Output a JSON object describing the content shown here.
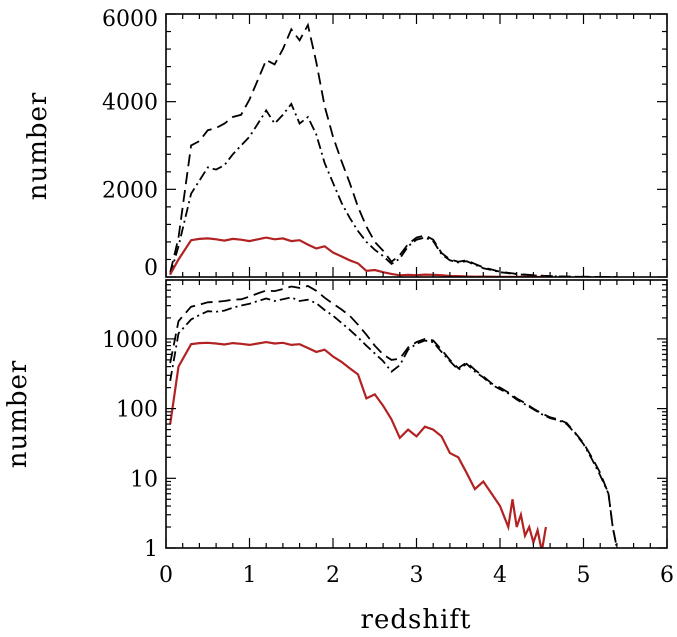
{
  "colors": {
    "red_series": "#b22222",
    "black_series": "#000000",
    "background": "#ffffff"
  },
  "chart_data": [
    {
      "type": "line",
      "panel": "top",
      "title": "",
      "xlabel": "",
      "ylabel": "number",
      "xlim": [
        0,
        6
      ],
      "ylim": [
        0,
        6000
      ],
      "yscale": "linear",
      "yticks": [
        0,
        2000,
        4000,
        6000
      ],
      "ytick_labels": [
        "0",
        "2000",
        "4000",
        "6000"
      ],
      "grid": false,
      "series": [
        {
          "style": "dashed",
          "color": "#000000",
          "x": [
            0.05,
            0.15,
            0.3,
            0.4,
            0.5,
            0.6,
            0.7,
            0.8,
            0.9,
            1.0,
            1.1,
            1.2,
            1.3,
            1.4,
            1.5,
            1.6,
            1.7,
            1.8,
            1.9,
            2.0,
            2.1,
            2.2,
            2.3,
            2.4,
            2.5,
            2.6,
            2.7,
            2.8,
            2.9,
            3.0,
            3.1,
            3.2,
            3.3,
            3.4,
            3.5,
            3.6,
            3.7,
            3.8,
            3.9,
            4.0,
            4.2,
            4.4,
            4.6,
            4.8,
            5.0,
            5.2,
            5.4
          ],
          "y": [
            100,
            900,
            3000,
            3100,
            3350,
            3400,
            3500,
            3650,
            3700,
            4050,
            4500,
            4950,
            4850,
            5200,
            5650,
            5400,
            5750,
            4900,
            3900,
            3200,
            2650,
            2150,
            1600,
            1150,
            800,
            600,
            350,
            500,
            750,
            900,
            950,
            850,
            550,
            400,
            350,
            380,
            300,
            220,
            170,
            120,
            70,
            40,
            20,
            10,
            5,
            2,
            0
          ]
        },
        {
          "style": "dash-dot",
          "color": "#000000",
          "x": [
            0.05,
            0.15,
            0.3,
            0.4,
            0.5,
            0.6,
            0.7,
            0.8,
            0.9,
            1.0,
            1.1,
            1.2,
            1.3,
            1.4,
            1.5,
            1.6,
            1.7,
            1.8,
            1.9,
            2.0,
            2.1,
            2.2,
            2.3,
            2.4,
            2.5,
            2.6,
            2.7,
            2.8,
            2.9,
            3.0,
            3.1,
            3.2,
            3.3,
            3.4,
            3.5,
            3.6,
            3.7,
            3.8,
            3.9,
            4.0,
            4.2,
            4.4,
            4.6,
            4.8,
            5.0,
            5.2,
            5.4
          ],
          "y": [
            50,
            700,
            1900,
            2200,
            2500,
            2450,
            2550,
            2800,
            3000,
            3200,
            3500,
            3800,
            3500,
            3700,
            3950,
            3500,
            3650,
            3250,
            2600,
            2150,
            1700,
            1350,
            1050,
            800,
            620,
            480,
            300,
            420,
            700,
            850,
            900,
            820,
            520,
            380,
            330,
            360,
            280,
            200,
            160,
            110,
            65,
            35,
            18,
            8,
            4,
            2,
            0
          ]
        },
        {
          "style": "solid",
          "color": "#b22222",
          "x": [
            0.05,
            0.15,
            0.3,
            0.4,
            0.5,
            0.6,
            0.7,
            0.8,
            0.9,
            1.0,
            1.1,
            1.2,
            1.3,
            1.4,
            1.5,
            1.6,
            1.7,
            1.8,
            1.9,
            2.0,
            2.1,
            2.2,
            2.3,
            2.4,
            2.5,
            2.6,
            2.7,
            2.8,
            2.9,
            3.0,
            3.1,
            3.2,
            3.3,
            3.4,
            3.5,
            3.6,
            3.7,
            3.8,
            3.9,
            4.0,
            4.1,
            4.2,
            4.3,
            4.4,
            4.5,
            4.55
          ],
          "y": [
            60,
            400,
            840,
            870,
            880,
            860,
            830,
            870,
            850,
            820,
            860,
            900,
            860,
            880,
            820,
            840,
            740,
            650,
            700,
            560,
            470,
            380,
            310,
            140,
            160,
            110,
            70,
            38,
            50,
            40,
            55,
            50,
            40,
            23,
            20,
            12,
            7,
            9,
            6,
            4,
            2,
            3,
            2,
            1,
            1,
            2
          ]
        }
      ]
    },
    {
      "type": "line",
      "panel": "bottom",
      "title": "",
      "xlabel": "redshift",
      "ylabel": "number",
      "xlim": [
        0,
        6
      ],
      "ylim": [
        1,
        7000
      ],
      "yscale": "log",
      "xticks": [
        0,
        1,
        2,
        3,
        4,
        5,
        6
      ],
      "xtick_labels": [
        "0",
        "1",
        "2",
        "3",
        "4",
        "5",
        "6"
      ],
      "yticks": [
        1,
        10,
        100,
        1000
      ],
      "ytick_labels": [
        "1",
        "10",
        "100",
        "1000"
      ],
      "grid": false,
      "series": [
        {
          "style": "dashed",
          "color": "#000000",
          "x": [
            0.05,
            0.15,
            0.3,
            0.4,
            0.5,
            0.6,
            0.7,
            0.8,
            0.9,
            1.0,
            1.1,
            1.2,
            1.3,
            1.4,
            1.5,
            1.6,
            1.7,
            1.8,
            1.9,
            2.0,
            2.1,
            2.2,
            2.3,
            2.4,
            2.5,
            2.6,
            2.7,
            2.8,
            2.9,
            3.0,
            3.1,
            3.2,
            3.3,
            3.4,
            3.5,
            3.6,
            3.7,
            3.8,
            3.9,
            4.0,
            4.1,
            4.2,
            4.3,
            4.4,
            4.5,
            4.6,
            4.7,
            4.8,
            4.9,
            5.0,
            5.1,
            5.2,
            5.3,
            5.35,
            5.4
          ],
          "y": [
            450,
            1800,
            2900,
            3100,
            3350,
            3400,
            3500,
            3650,
            3700,
            4050,
            4500,
            4950,
            4850,
            5200,
            5650,
            5400,
            5750,
            4900,
            3900,
            3200,
            2650,
            2150,
            1600,
            1150,
            800,
            600,
            500,
            520,
            750,
            900,
            1000,
            950,
            700,
            500,
            380,
            460,
            360,
            290,
            230,
            200,
            170,
            140,
            120,
            100,
            85,
            75,
            70,
            62,
            45,
            32,
            20,
            12,
            6,
            2,
            1
          ]
        },
        {
          "style": "dash-dot",
          "color": "#000000",
          "x": [
            0.05,
            0.15,
            0.3,
            0.4,
            0.5,
            0.6,
            0.7,
            0.8,
            0.9,
            1.0,
            1.1,
            1.2,
            1.3,
            1.4,
            1.5,
            1.6,
            1.7,
            1.8,
            1.9,
            2.0,
            2.1,
            2.2,
            2.3,
            2.4,
            2.5,
            2.6,
            2.7,
            2.8,
            2.9,
            3.0,
            3.1,
            3.2,
            3.3,
            3.4,
            3.5,
            3.6,
            3.7,
            3.8,
            3.9,
            4.0,
            4.1,
            4.2,
            4.3,
            4.4,
            4.5,
            4.6,
            4.7,
            4.8,
            4.9,
            5.0,
            5.1,
            5.2,
            5.3,
            5.35,
            5.4
          ],
          "y": [
            250,
            1200,
            1900,
            2200,
            2500,
            2450,
            2550,
            2800,
            3000,
            3200,
            3500,
            3800,
            3500,
            3700,
            3950,
            3500,
            3650,
            3250,
            2600,
            2150,
            1700,
            1350,
            1050,
            800,
            620,
            480,
            340,
            420,
            700,
            850,
            950,
            900,
            650,
            480,
            360,
            440,
            340,
            280,
            220,
            190,
            165,
            135,
            115,
            98,
            83,
            73,
            68,
            60,
            44,
            31,
            19,
            11,
            6,
            2,
            1
          ]
        },
        {
          "style": "solid",
          "color": "#b22222",
          "x": [
            0.05,
            0.15,
            0.3,
            0.4,
            0.5,
            0.6,
            0.7,
            0.8,
            0.9,
            1.0,
            1.1,
            1.2,
            1.3,
            1.4,
            1.5,
            1.6,
            1.7,
            1.8,
            1.9,
            2.0,
            2.1,
            2.2,
            2.3,
            2.4,
            2.5,
            2.6,
            2.7,
            2.8,
            2.9,
            3.0,
            3.1,
            3.2,
            3.3,
            3.4,
            3.5,
            3.6,
            3.7,
            3.8,
            3.9,
            4.0,
            4.1,
            4.15,
            4.2,
            4.25,
            4.3,
            4.35,
            4.4,
            4.45,
            4.5,
            4.55
          ],
          "y": [
            60,
            400,
            840,
            870,
            880,
            860,
            830,
            870,
            850,
            820,
            860,
            900,
            860,
            880,
            820,
            840,
            740,
            650,
            700,
            560,
            470,
            380,
            310,
            140,
            160,
            110,
            70,
            38,
            50,
            40,
            55,
            50,
            40,
            23,
            20,
            12,
            7,
            9,
            6,
            4,
            2,
            5,
            2,
            3,
            1.5,
            2,
            1.2,
            1.8,
            0.9,
            2
          ]
        }
      ]
    }
  ]
}
